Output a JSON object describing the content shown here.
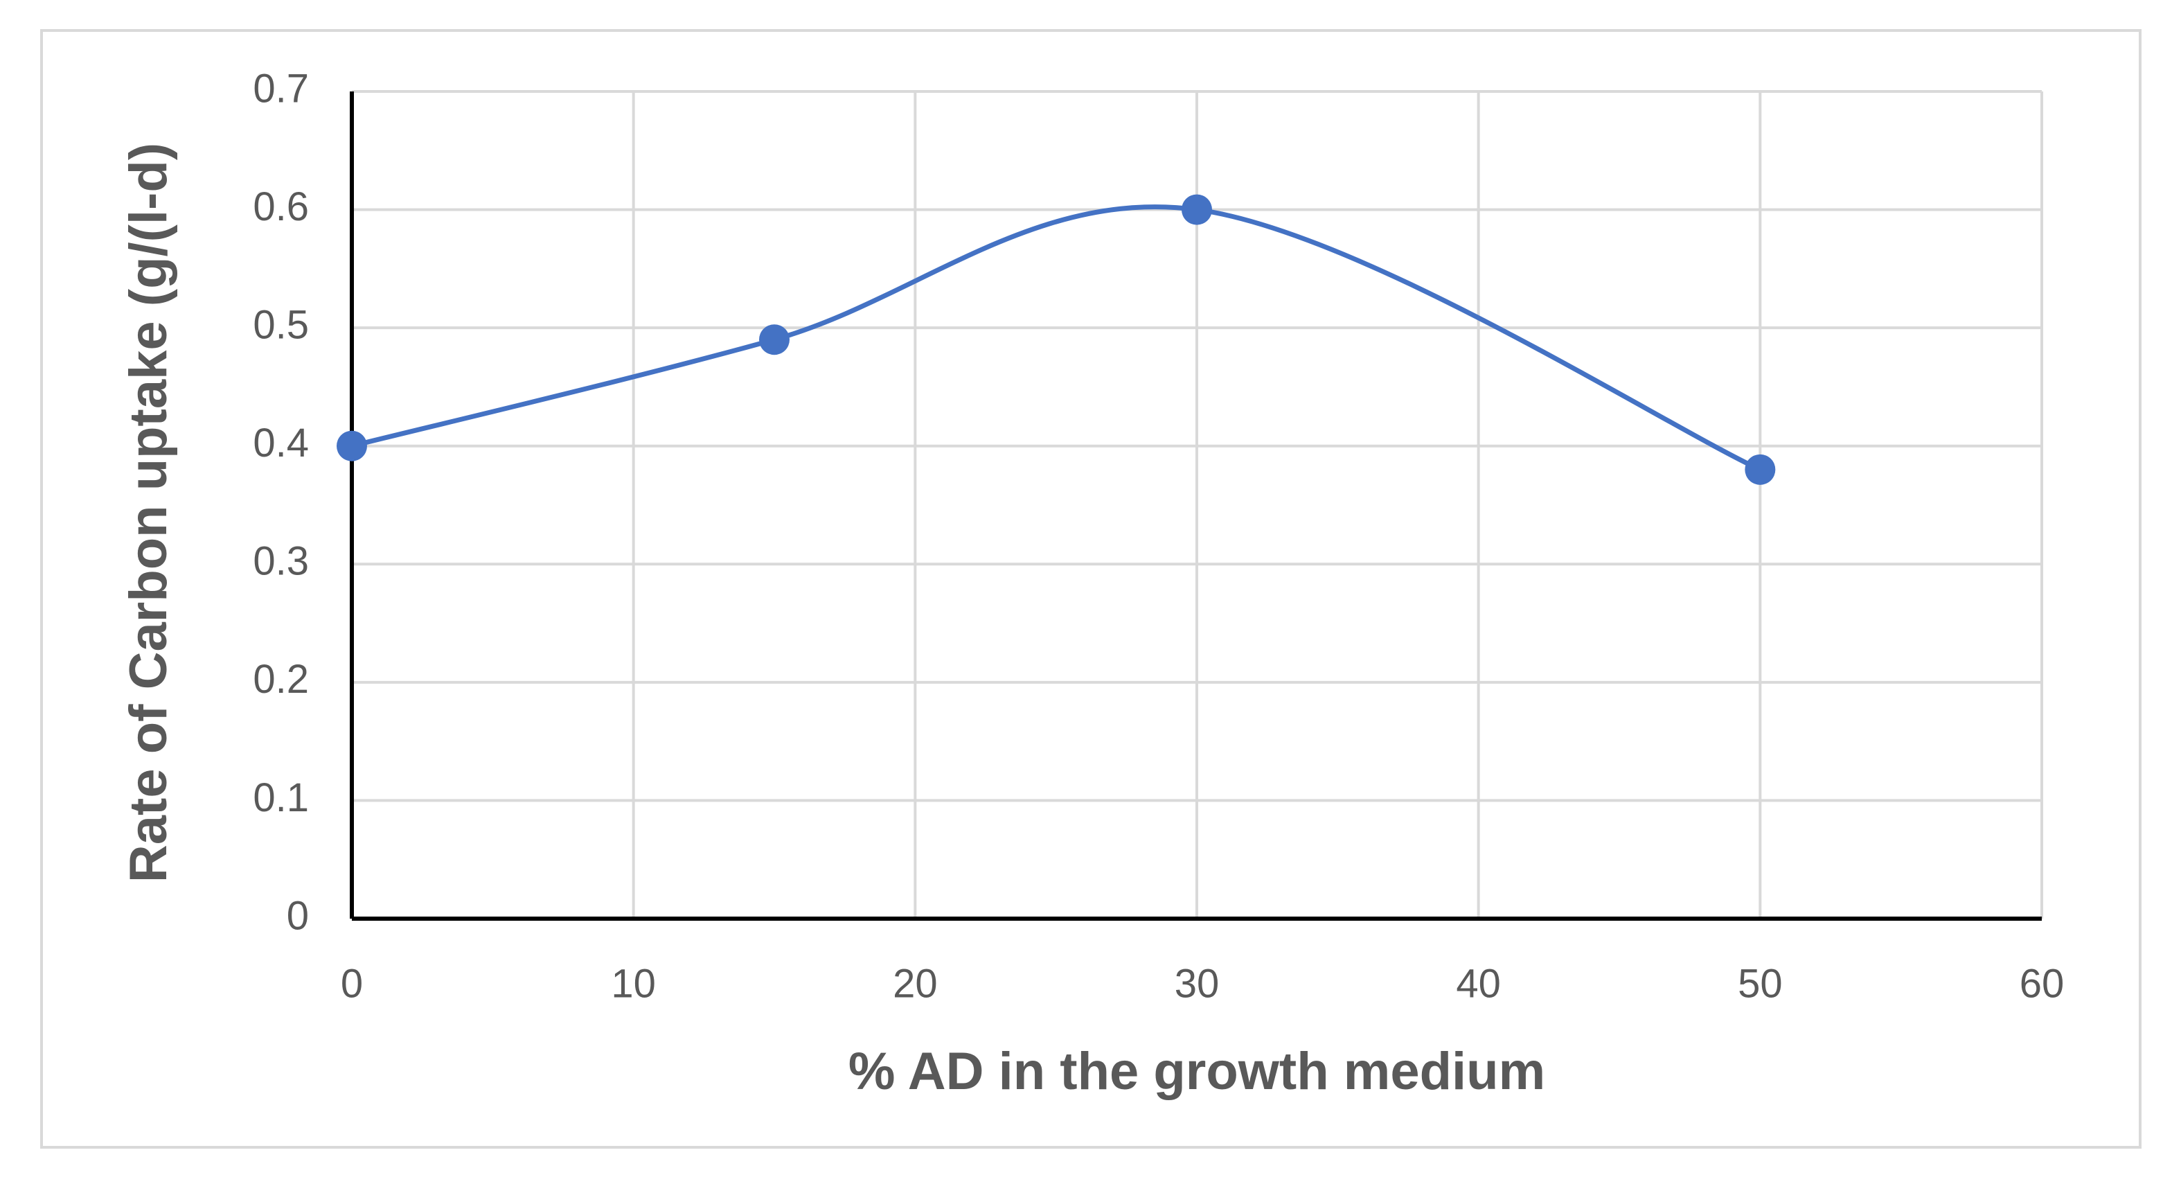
{
  "chart_data": {
    "type": "scatter",
    "smooth": true,
    "grid": true,
    "x_label": "% AD in the growth medium",
    "y_label": "Rate of Carbon uptake (g/(l-d)",
    "x": [
      0,
      15,
      30,
      50
    ],
    "values": [
      0.4,
      0.49,
      0.6,
      0.38
    ],
    "color": "#4472c4",
    "xlim": [
      0,
      60
    ],
    "xticks": [
      0,
      10,
      20,
      30,
      40,
      50,
      60
    ],
    "ylim": [
      0,
      0.7
    ],
    "yticks": [
      0,
      0.1,
      0.2,
      0.3,
      0.4,
      0.5,
      0.6,
      0.7
    ]
  }
}
